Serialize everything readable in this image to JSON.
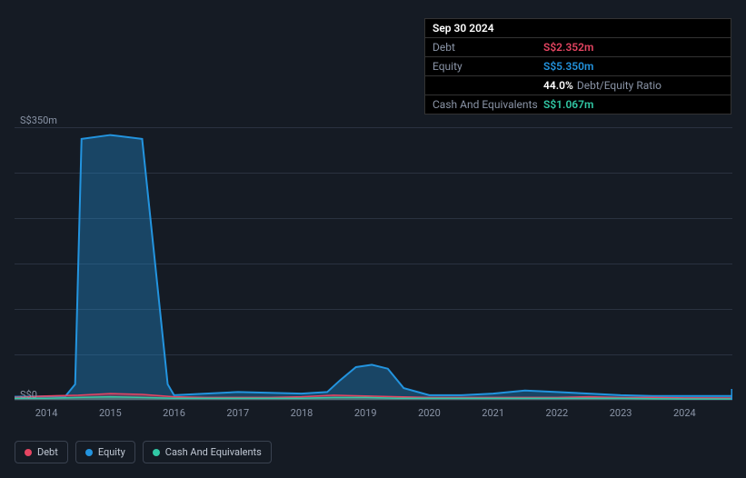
{
  "background_color": "#151b24",
  "panel": {
    "date": "Sep 30 2024",
    "rows": [
      {
        "label": "Debt",
        "value": "S$2.352m",
        "color": "#e64562"
      },
      {
        "label": "Equity",
        "value": "S$5.350m",
        "color": "#2394df"
      },
      {
        "label": "",
        "value": "44.0%",
        "suffix": "Debt/Equity Ratio",
        "color": "#ffffff"
      },
      {
        "label": "Cash And Equivalents",
        "value": "S$1.067m",
        "color": "#31c8a5"
      }
    ]
  },
  "chart": {
    "type": "area",
    "ylim": [
      0,
      350
    ],
    "y_top_label": "S$350m",
    "y_bottom_label": "S$0",
    "grid_color": "#2a3240",
    "grid_positions_pct": [
      0,
      16.67,
      33.33,
      50,
      66.67,
      83.33,
      100
    ],
    "x_years": [
      "2014",
      "2015",
      "2016",
      "2017",
      "2018",
      "2019",
      "2020",
      "2021",
      "2022",
      "2023",
      "2024"
    ],
    "x_min": 2013.5,
    "x_max": 2024.75,
    "series": [
      {
        "name": "Equity",
        "color": "#2394df",
        "fill_opacity": 0.35,
        "line_width": 2,
        "points": [
          [
            2013.5,
            4
          ],
          [
            2014.3,
            5
          ],
          [
            2014.45,
            20
          ],
          [
            2014.55,
            335
          ],
          [
            2015.0,
            340
          ],
          [
            2015.5,
            335
          ],
          [
            2015.9,
            20
          ],
          [
            2016.0,
            6
          ],
          [
            2016.5,
            8
          ],
          [
            2017.0,
            10
          ],
          [
            2017.5,
            9
          ],
          [
            2018.0,
            8
          ],
          [
            2018.4,
            10
          ],
          [
            2018.6,
            25
          ],
          [
            2018.85,
            42
          ],
          [
            2019.1,
            45
          ],
          [
            2019.35,
            40
          ],
          [
            2019.6,
            15
          ],
          [
            2020.0,
            6
          ],
          [
            2020.5,
            6
          ],
          [
            2021.0,
            8
          ],
          [
            2021.5,
            12
          ],
          [
            2022.0,
            10
          ],
          [
            2022.5,
            8
          ],
          [
            2023.0,
            6
          ],
          [
            2023.5,
            5
          ],
          [
            2024.0,
            5
          ],
          [
            2024.6,
            5
          ],
          [
            2024.75,
            5
          ]
        ]
      },
      {
        "name": "Debt",
        "color": "#e64562",
        "fill_opacity": 0.35,
        "line_width": 1.5,
        "points": [
          [
            2013.5,
            3
          ],
          [
            2014.0,
            5
          ],
          [
            2014.5,
            6
          ],
          [
            2015.0,
            8
          ],
          [
            2015.5,
            7
          ],
          [
            2016.0,
            4
          ],
          [
            2016.5,
            3
          ],
          [
            2017.0,
            3
          ],
          [
            2017.5,
            3
          ],
          [
            2018.0,
            4
          ],
          [
            2018.5,
            6
          ],
          [
            2019.0,
            5
          ],
          [
            2019.5,
            4
          ],
          [
            2020.0,
            3
          ],
          [
            2020.5,
            3
          ],
          [
            2021.0,
            3
          ],
          [
            2021.5,
            3
          ],
          [
            2022.0,
            3
          ],
          [
            2022.5,
            4
          ],
          [
            2023.0,
            3
          ],
          [
            2023.5,
            3
          ],
          [
            2024.0,
            2.5
          ],
          [
            2024.75,
            2.4
          ]
        ]
      },
      {
        "name": "Cash And Equivalents",
        "color": "#31c8a5",
        "fill_opacity": 0.35,
        "line_width": 1.5,
        "points": [
          [
            2013.5,
            2
          ],
          [
            2014.0,
            2
          ],
          [
            2014.5,
            3
          ],
          [
            2015.0,
            4
          ],
          [
            2015.5,
            3
          ],
          [
            2016.0,
            2
          ],
          [
            2016.5,
            2
          ],
          [
            2017.0,
            2
          ],
          [
            2017.5,
            2
          ],
          [
            2018.0,
            2
          ],
          [
            2018.5,
            3
          ],
          [
            2019.0,
            3
          ],
          [
            2019.5,
            2
          ],
          [
            2020.0,
            2
          ],
          [
            2020.5,
            2
          ],
          [
            2021.0,
            2
          ],
          [
            2021.5,
            2
          ],
          [
            2022.0,
            2
          ],
          [
            2022.5,
            2
          ],
          [
            2023.0,
            2
          ],
          [
            2023.5,
            1.5
          ],
          [
            2024.0,
            1.2
          ],
          [
            2024.75,
            1.1
          ]
        ]
      }
    ],
    "end_marker": {
      "x": 2024.75,
      "color": "#2394df"
    }
  },
  "legend": [
    {
      "name": "Debt",
      "color": "#e64562"
    },
    {
      "name": "Equity",
      "color": "#2394df"
    },
    {
      "name": "Cash And Equivalents",
      "color": "#31c8a5"
    }
  ]
}
